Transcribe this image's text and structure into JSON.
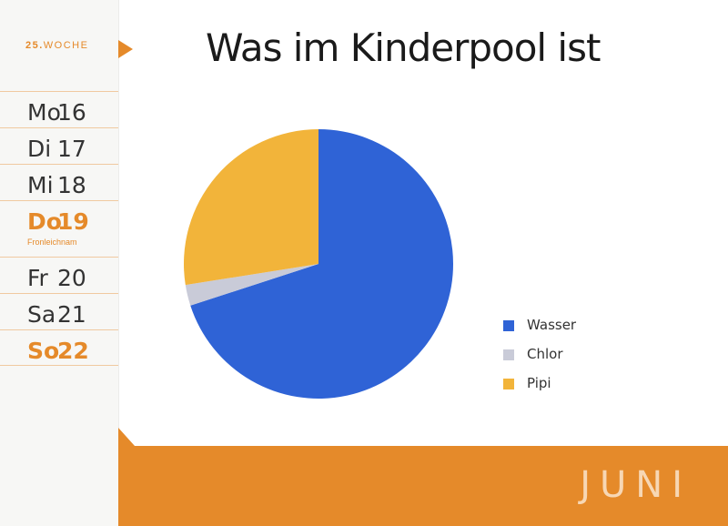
{
  "sidebar": {
    "week_number": "25.",
    "week_label": "WOCHE",
    "days": [
      {
        "name": "Mo",
        "num": "16"
      },
      {
        "name": "Di",
        "num": "17"
      },
      {
        "name": "Mi",
        "num": "18"
      },
      {
        "name": "Do",
        "num": "19",
        "note": "Fronleichnam"
      },
      {
        "name": "Fr",
        "num": "20"
      },
      {
        "name": "Sa",
        "num": "21"
      },
      {
        "name": "So",
        "num": "22"
      }
    ]
  },
  "header": {
    "title": "Was im Kinderpool ist"
  },
  "chart_data": {
    "type": "pie",
    "title": "Was im Kinderpool ist",
    "categories": [
      "Wasser",
      "Chlor",
      "Pipi"
    ],
    "values": [
      70,
      2.5,
      27.5
    ],
    "colors": [
      "#2f63d6",
      "#c9cbd8",
      "#f2b43a"
    ],
    "legend_position": "right"
  },
  "footer": {
    "month": "JUNI"
  },
  "colors": {
    "accent": "#e58a2a"
  }
}
